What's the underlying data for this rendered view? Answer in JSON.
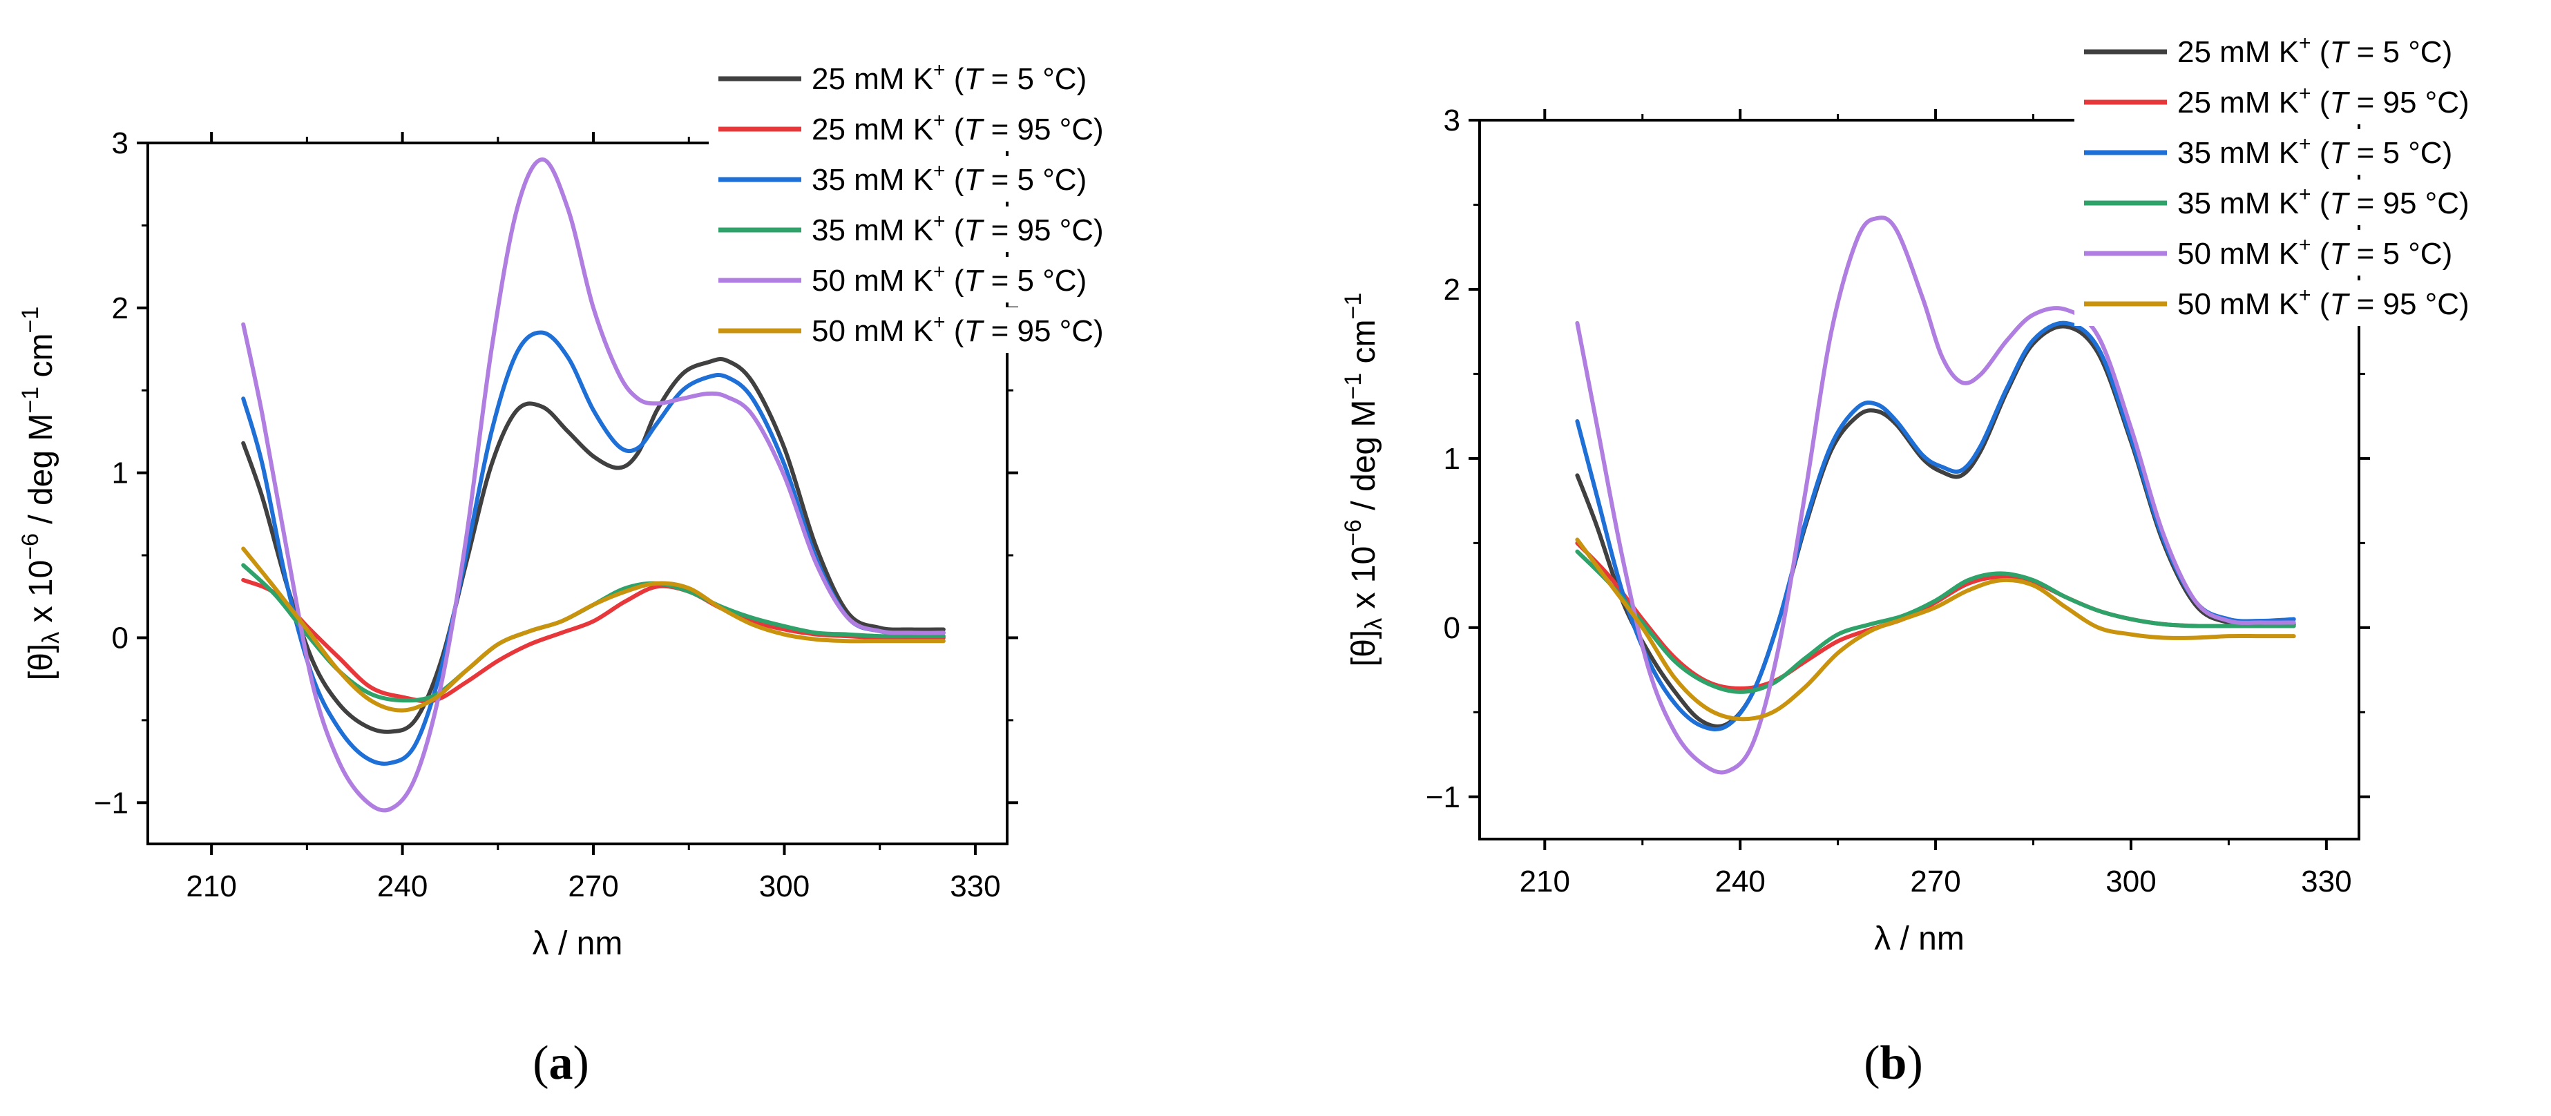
{
  "colors": {
    "k25_5": "#404040",
    "k25_95": "#e8373a",
    "k35_5": "#1e6fd6",
    "k35_95": "#2fa26a",
    "k50_5": "#b07de0",
    "k50_95": "#c9930e"
  },
  "captions": {
    "a": {
      "open": "(",
      "label": "a",
      "close": ")"
    },
    "b": {
      "open": "(",
      "label": "b",
      "close": ")"
    }
  },
  "chart_data": [
    {
      "id": "a",
      "type": "line",
      "title": "",
      "xlabel": "λ / nm",
      "ylabel": "[θ]λ x 10−6 / deg M−1 cm−1",
      "xlim": [
        200,
        335
      ],
      "ylim": [
        -1.25,
        3.0
      ],
      "xticks": [
        210,
        240,
        270,
        300,
        330
      ],
      "yticks": [
        -1,
        0,
        1,
        2,
        3
      ],
      "xtick_labels": [
        "210",
        "240",
        "270",
        "300",
        "330"
      ],
      "ytick_labels": [
        "−1",
        "0",
        "1",
        "2",
        "3"
      ],
      "legend_position": "top-right",
      "series": [
        {
          "key": "k25_5",
          "label": "25 mM K+ (T = 5 °C)",
          "conc": "25 mM K",
          "temp": "5 °C",
          "x": [
            215,
            218,
            222,
            226,
            230,
            234,
            238,
            242,
            246,
            250,
            254,
            258,
            262,
            266,
            270,
            274,
            277,
            280,
            284,
            288,
            291,
            295,
            300,
            305,
            310,
            315,
            320,
            325
          ],
          "y": [
            1.18,
            0.85,
            0.3,
            -0.15,
            -0.4,
            -0.53,
            -0.57,
            -0.5,
            -0.15,
            0.45,
            1.05,
            1.38,
            1.4,
            1.25,
            1.1,
            1.03,
            1.12,
            1.38,
            1.6,
            1.67,
            1.68,
            1.55,
            1.15,
            0.55,
            0.15,
            0.06,
            0.05,
            0.05
          ]
        },
        {
          "key": "k25_95",
          "label": "25 mM K+ (T = 95 °C)",
          "conc": "25 mM K",
          "temp": "95 °C",
          "x": [
            215,
            220,
            225,
            230,
            235,
            240,
            245,
            250,
            255,
            260,
            265,
            270,
            275,
            280,
            285,
            290,
            295,
            300,
            305,
            310,
            315,
            320,
            325
          ],
          "y": [
            0.35,
            0.27,
            0.07,
            -0.12,
            -0.3,
            -0.36,
            -0.38,
            -0.27,
            -0.14,
            -0.04,
            0.03,
            0.1,
            0.22,
            0.31,
            0.28,
            0.18,
            0.1,
            0.05,
            0.02,
            0.01,
            0.0,
            0.0,
            0.0
          ]
        },
        {
          "key": "k35_5",
          "label": "35 mM K+ (T = 5 °C)",
          "conc": "35 mM K",
          "temp": "5 °C",
          "x": [
            215,
            218,
            222,
            226,
            230,
            234,
            238,
            242,
            246,
            250,
            254,
            258,
            262,
            266,
            270,
            274,
            277,
            280,
            284,
            288,
            291,
            295,
            300,
            305,
            310,
            315,
            320,
            325
          ],
          "y": [
            1.45,
            1.05,
            0.3,
            -0.25,
            -0.55,
            -0.72,
            -0.76,
            -0.65,
            -0.2,
            0.5,
            1.25,
            1.73,
            1.85,
            1.7,
            1.38,
            1.16,
            1.15,
            1.3,
            1.5,
            1.58,
            1.58,
            1.45,
            1.05,
            0.48,
            0.12,
            0.04,
            0.03,
            0.03
          ]
        },
        {
          "key": "k35_95",
          "label": "35 mM K+ (T = 95 °C)",
          "conc": "35 mM K",
          "temp": "95 °C",
          "x": [
            215,
            220,
            225,
            230,
            235,
            240,
            245,
            250,
            255,
            260,
            265,
            270,
            275,
            280,
            285,
            290,
            295,
            300,
            305,
            310,
            315,
            320,
            325
          ],
          "y": [
            0.44,
            0.26,
            0.02,
            -0.2,
            -0.34,
            -0.38,
            -0.35,
            -0.2,
            -0.04,
            0.04,
            0.1,
            0.2,
            0.3,
            0.33,
            0.28,
            0.19,
            0.12,
            0.07,
            0.03,
            0.02,
            0.01,
            0.01,
            0.01
          ]
        },
        {
          "key": "k50_5",
          "label": "50 mM K+ (T = 5 °C)",
          "conc": "50 mM K",
          "temp": "5 °C",
          "x": [
            215,
            218,
            222,
            226,
            230,
            234,
            238,
            242,
            246,
            250,
            254,
            258,
            262,
            266,
            270,
            274,
            277,
            280,
            284,
            288,
            291,
            295,
            300,
            305,
            310,
            315,
            320,
            325
          ],
          "y": [
            1.9,
            1.35,
            0.5,
            -0.3,
            -0.75,
            -0.98,
            -1.04,
            -0.85,
            -0.3,
            0.6,
            1.75,
            2.6,
            2.9,
            2.6,
            2.0,
            1.6,
            1.45,
            1.42,
            1.45,
            1.48,
            1.46,
            1.35,
            0.98,
            0.45,
            0.12,
            0.04,
            0.03,
            0.03
          ]
        },
        {
          "key": "k50_95",
          "label": "50 mM K+ (T = 95 °C)",
          "conc": "50 mM K",
          "temp": "95 °C",
          "x": [
            215,
            220,
            225,
            230,
            235,
            240,
            245,
            250,
            255,
            260,
            265,
            270,
            275,
            280,
            285,
            290,
            295,
            300,
            305,
            310,
            315,
            320,
            325
          ],
          "y": [
            0.54,
            0.3,
            0.05,
            -0.2,
            -0.38,
            -0.44,
            -0.37,
            -0.2,
            -0.04,
            0.04,
            0.1,
            0.2,
            0.28,
            0.33,
            0.3,
            0.18,
            0.08,
            0.02,
            -0.01,
            -0.02,
            -0.02,
            -0.02,
            -0.02
          ]
        }
      ]
    },
    {
      "id": "b",
      "type": "line",
      "title": "",
      "xlabel": "λ / nm",
      "ylabel": "[θ]λ x 10−6 / deg M−1 cm−1",
      "xlim": [
        200,
        335
      ],
      "ylim": [
        -1.25,
        3.0
      ],
      "xticks": [
        210,
        240,
        270,
        300,
        330
      ],
      "yticks": [
        -1,
        0,
        1,
        2,
        3
      ],
      "xtick_labels": [
        "210",
        "240",
        "270",
        "300",
        "330"
      ],
      "ytick_labels": [
        "−1",
        "0",
        "1",
        "2",
        "3"
      ],
      "legend_position": "top-right",
      "series": [
        {
          "key": "k25_5",
          "label": "25 mM K+ (T = 5 °C)",
          "conc": "25 mM K",
          "temp": "5 °C",
          "x": [
            215,
            218,
            222,
            226,
            230,
            234,
            238,
            242,
            246,
            250,
            254,
            258,
            261,
            264,
            268,
            271,
            274,
            277,
            281,
            285,
            290,
            295,
            300,
            305,
            310,
            315,
            320,
            325
          ],
          "y": [
            0.9,
            0.6,
            0.15,
            -0.15,
            -0.38,
            -0.55,
            -0.57,
            -0.38,
            0.05,
            0.6,
            1.05,
            1.25,
            1.28,
            1.2,
            1.0,
            0.92,
            0.9,
            1.05,
            1.4,
            1.68,
            1.78,
            1.62,
            1.1,
            0.5,
            0.13,
            0.03,
            0.02,
            0.02
          ]
        },
        {
          "key": "k25_95",
          "label": "25 mM K+ (T = 95 °C)",
          "conc": "25 mM K",
          "temp": "95 °C",
          "x": [
            215,
            220,
            225,
            230,
            235,
            240,
            245,
            250,
            255,
            260,
            265,
            270,
            275,
            280,
            285,
            290,
            295,
            300,
            305,
            310,
            315,
            320,
            325
          ],
          "y": [
            0.5,
            0.3,
            0.05,
            -0.18,
            -0.32,
            -0.36,
            -0.32,
            -0.2,
            -0.08,
            -0.01,
            0.05,
            0.15,
            0.26,
            0.3,
            0.27,
            0.18,
            0.1,
            0.05,
            0.02,
            0.01,
            0.01,
            0.01,
            0.01
          ]
        },
        {
          "key": "k35_5",
          "label": "35 mM K+ (T = 5 °C)",
          "conc": "35 mM K",
          "temp": "5 °C",
          "x": [
            215,
            218,
            222,
            226,
            230,
            234,
            238,
            242,
            246,
            250,
            254,
            258,
            261,
            264,
            268,
            271,
            274,
            277,
            281,
            285,
            290,
            295,
            300,
            305,
            310,
            315,
            320,
            325
          ],
          "y": [
            1.22,
            0.78,
            0.2,
            -0.2,
            -0.45,
            -0.58,
            -0.58,
            -0.38,
            0.05,
            0.62,
            1.08,
            1.3,
            1.32,
            1.22,
            1.02,
            0.95,
            0.93,
            1.08,
            1.42,
            1.7,
            1.8,
            1.65,
            1.12,
            0.52,
            0.15,
            0.05,
            0.04,
            0.05
          ]
        },
        {
          "key": "k35_95",
          "label": "35 mM K+ (T = 95 °C)",
          "conc": "35 mM K",
          "temp": "95 °C",
          "x": [
            215,
            220,
            225,
            230,
            235,
            240,
            245,
            250,
            255,
            260,
            265,
            270,
            275,
            280,
            285,
            290,
            295,
            300,
            305,
            310,
            315,
            320,
            325
          ],
          "y": [
            0.45,
            0.26,
            0.03,
            -0.2,
            -0.33,
            -0.38,
            -0.33,
            -0.18,
            -0.04,
            0.02,
            0.07,
            0.16,
            0.28,
            0.32,
            0.28,
            0.18,
            0.1,
            0.05,
            0.02,
            0.01,
            0.01,
            0.01,
            0.01
          ]
        },
        {
          "key": "k50_5",
          "label": "50 mM K+ (T = 5 °C)",
          "conc": "50 mM K",
          "temp": "5 °C",
          "x": [
            215,
            218,
            222,
            226,
            230,
            234,
            238,
            242,
            246,
            250,
            254,
            258,
            261,
            264,
            268,
            271,
            274,
            277,
            281,
            285,
            290,
            295,
            300,
            305,
            310,
            315,
            320,
            325
          ],
          "y": [
            1.8,
            1.2,
            0.4,
            -0.25,
            -0.62,
            -0.8,
            -0.85,
            -0.68,
            -0.1,
            0.8,
            1.75,
            2.3,
            2.42,
            2.35,
            1.95,
            1.6,
            1.45,
            1.5,
            1.7,
            1.85,
            1.88,
            1.72,
            1.18,
            0.55,
            0.15,
            0.04,
            0.03,
            0.03
          ]
        },
        {
          "key": "k50_95",
          "label": "50 mM K+ (T = 95 °C)",
          "conc": "50 mM K",
          "temp": "95 °C",
          "x": [
            215,
            220,
            225,
            230,
            235,
            240,
            245,
            250,
            255,
            260,
            265,
            270,
            275,
            280,
            285,
            290,
            295,
            300,
            305,
            310,
            315,
            320,
            325
          ],
          "y": [
            0.52,
            0.26,
            0.0,
            -0.3,
            -0.48,
            -0.54,
            -0.5,
            -0.35,
            -0.15,
            -0.02,
            0.05,
            0.12,
            0.22,
            0.28,
            0.25,
            0.12,
            0.0,
            -0.04,
            -0.06,
            -0.06,
            -0.05,
            -0.05,
            -0.05
          ]
        }
      ]
    }
  ]
}
